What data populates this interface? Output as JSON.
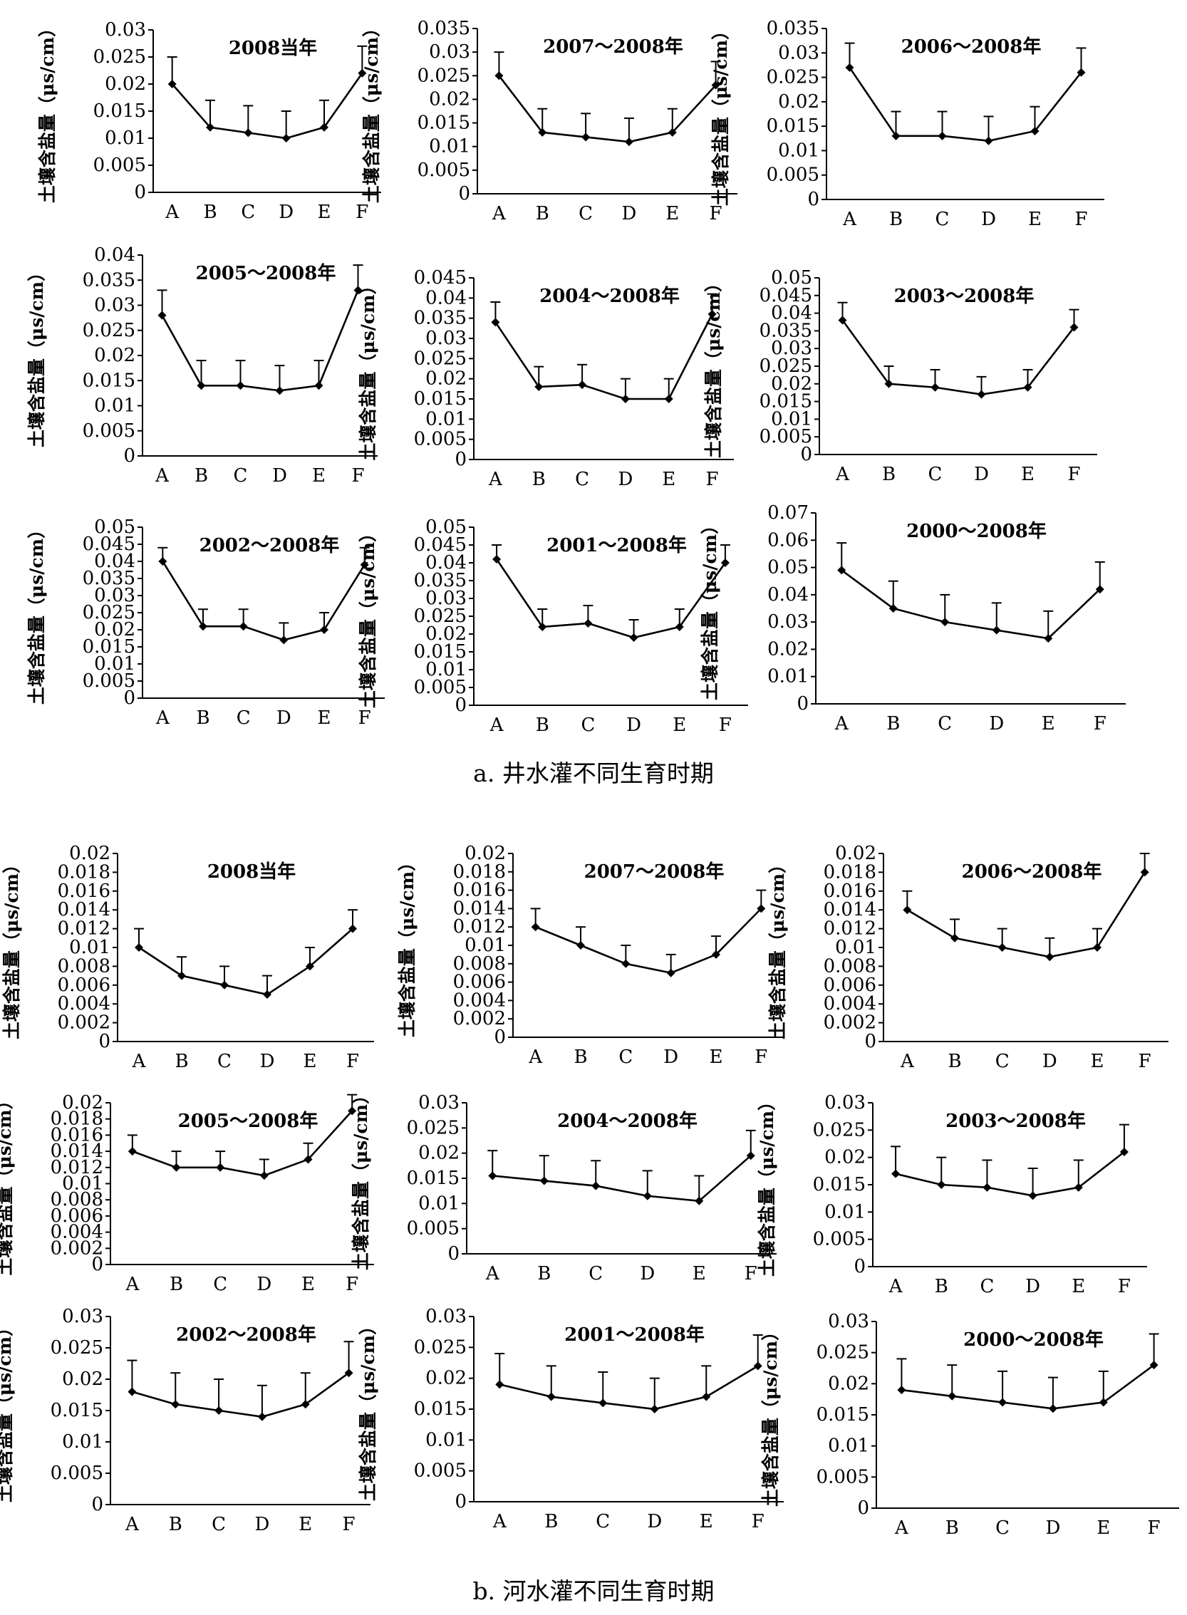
{
  "figure": {
    "caption_a": "a. 井水灌不同生育时期",
    "caption_b": "b. 河水灌不同生育时期"
  },
  "style": {
    "line_color": "#000000",
    "marker": "diamond",
    "background": "#ffffff"
  },
  "chart_data": [
    {
      "type": "line",
      "group": "a",
      "title": "2008当年",
      "ylabel": "土壤含盐量（μs/cm）",
      "categories": [
        "A",
        "B",
        "C",
        "D",
        "E",
        "F"
      ],
      "values": [
        0.02,
        0.012,
        0.011,
        0.01,
        0.012,
        0.022
      ],
      "error_upper": [
        0.025,
        0.017,
        0.016,
        0.015,
        0.017,
        0.027
      ],
      "ylim": [
        0,
        0.03
      ],
      "yticks": [
        0,
        0.005,
        0.01,
        0.015,
        0.02,
        0.025,
        0.03
      ],
      "ytick_labels": [
        "0",
        "0.005",
        "0.01",
        "0.015",
        "0.02",
        "0.025",
        "0.03"
      ]
    },
    {
      "type": "line",
      "group": "a",
      "title": "2007～2008年",
      "ylabel": "土壤含盐量（μs/cm）",
      "categories": [
        "A",
        "B",
        "C",
        "D",
        "E",
        "F"
      ],
      "values": [
        0.025,
        0.013,
        0.012,
        0.011,
        0.013,
        0.023
      ],
      "error_upper": [
        0.03,
        0.018,
        0.017,
        0.016,
        0.018,
        0.028
      ],
      "ylim": [
        0,
        0.035
      ],
      "yticks": [
        0,
        0.005,
        0.01,
        0.015,
        0.02,
        0.025,
        0.03,
        0.035
      ],
      "ytick_labels": [
        "0",
        "0.005",
        "0.01",
        "0.015",
        "0.02",
        "0.025",
        "0.03",
        "0.035"
      ]
    },
    {
      "type": "line",
      "group": "a",
      "title": "2006～2008年",
      "ylabel": "土壤含盐量（μs/cm）",
      "categories": [
        "A",
        "B",
        "C",
        "D",
        "E",
        "F"
      ],
      "values": [
        0.027,
        0.013,
        0.013,
        0.012,
        0.014,
        0.026
      ],
      "error_upper": [
        0.032,
        0.018,
        0.018,
        0.017,
        0.019,
        0.031
      ],
      "ylim": [
        0,
        0.035
      ],
      "yticks": [
        0,
        0.005,
        0.01,
        0.015,
        0.02,
        0.025,
        0.03,
        0.035
      ],
      "ytick_labels": [
        "0",
        "0.005",
        "0.01",
        "0.015",
        "0.02",
        "0.025",
        "0.03",
        "0.035"
      ]
    },
    {
      "type": "line",
      "group": "a",
      "title": "2005～2008年",
      "ylabel": "土壤含盐量（μs/cm）",
      "categories": [
        "A",
        "B",
        "C",
        "D",
        "E",
        "F"
      ],
      "values": [
        0.028,
        0.014,
        0.014,
        0.013,
        0.014,
        0.033
      ],
      "error_upper": [
        0.033,
        0.019,
        0.019,
        0.018,
        0.019,
        0.038
      ],
      "ylim": [
        0,
        0.04
      ],
      "yticks": [
        0,
        0.005,
        0.01,
        0.015,
        0.02,
        0.025,
        0.03,
        0.035,
        0.04
      ],
      "ytick_labels": [
        "0",
        "0.005",
        "0.01",
        "0.015",
        "0.02",
        "0.025",
        "0.03",
        "0.035",
        "0.04"
      ]
    },
    {
      "type": "line",
      "group": "a",
      "title": "2004～2008年",
      "ylabel": "土壤含盐量（μs/cm）",
      "categories": [
        "A",
        "B",
        "C",
        "D",
        "E",
        "F"
      ],
      "values": [
        0.034,
        0.018,
        0.0185,
        0.015,
        0.015,
        0.036
      ],
      "error_upper": [
        0.039,
        0.023,
        0.0235,
        0.02,
        0.02,
        0.041
      ],
      "ylim": [
        0,
        0.045
      ],
      "yticks": [
        0,
        0.005,
        0.01,
        0.015,
        0.02,
        0.025,
        0.03,
        0.035,
        0.04,
        0.045
      ],
      "ytick_labels": [
        "0",
        "0.005",
        "0.01",
        "0.015",
        "0.02",
        "0.025",
        "0.03",
        "0.035",
        "0.04",
        "0.045"
      ]
    },
    {
      "type": "line",
      "group": "a",
      "title": "2003～2008年",
      "ylabel": "土壤含盐量（μs/cm）",
      "categories": [
        "A",
        "B",
        "C",
        "D",
        "E",
        "F"
      ],
      "values": [
        0.038,
        0.02,
        0.019,
        0.017,
        0.019,
        0.036
      ],
      "error_upper": [
        0.043,
        0.025,
        0.024,
        0.022,
        0.024,
        0.041
      ],
      "ylim": [
        0,
        0.05
      ],
      "yticks": [
        0,
        0.005,
        0.01,
        0.015,
        0.02,
        0.025,
        0.03,
        0.035,
        0.04,
        0.045,
        0.05
      ],
      "ytick_labels": [
        "0",
        "0.005",
        "0.01",
        "0.015",
        "0.02",
        "0.025",
        "0.03",
        "0.035",
        "0.04",
        "0.045",
        "0.05"
      ]
    },
    {
      "type": "line",
      "group": "a",
      "title": "2002～2008年",
      "ylabel": "土壤含盐量（μs/cm）",
      "categories": [
        "A",
        "B",
        "C",
        "D",
        "E",
        "F"
      ],
      "values": [
        0.04,
        0.021,
        0.021,
        0.017,
        0.02,
        0.039
      ],
      "error_upper": [
        0.044,
        0.026,
        0.026,
        0.022,
        0.025,
        0.044
      ],
      "ylim": [
        0,
        0.05
      ],
      "yticks": [
        0,
        0.005,
        0.01,
        0.015,
        0.02,
        0.025,
        0.03,
        0.035,
        0.04,
        0.045,
        0.05
      ],
      "ytick_labels": [
        "0",
        "0.005",
        "0.01",
        "0.015",
        "0.02",
        "0.025",
        "0.03",
        "0.035",
        "0.04",
        "0.045",
        "0.05"
      ]
    },
    {
      "type": "line",
      "group": "a",
      "title": "2001～2008年",
      "ylabel": "土壤含盐量（μs/cm）",
      "categories": [
        "A",
        "B",
        "C",
        "D",
        "E",
        "F"
      ],
      "values": [
        0.041,
        0.022,
        0.023,
        0.019,
        0.022,
        0.04
      ],
      "error_upper": [
        0.045,
        0.027,
        0.028,
        0.024,
        0.027,
        0.045
      ],
      "ylim": [
        0,
        0.05
      ],
      "yticks": [
        0,
        0.005,
        0.01,
        0.015,
        0.02,
        0.025,
        0.03,
        0.035,
        0.04,
        0.045,
        0.05
      ],
      "ytick_labels": [
        "0",
        "0.005",
        "0.01",
        "0.015",
        "0.02",
        "0.025",
        "0.03",
        "0.035",
        "0.04",
        "0.045",
        "0.05"
      ]
    },
    {
      "type": "line",
      "group": "a",
      "title": "2000～2008年",
      "ylabel": "土壤含盐量（μs/cm）",
      "categories": [
        "A",
        "B",
        "C",
        "D",
        "E",
        "F"
      ],
      "values": [
        0.049,
        0.035,
        0.03,
        0.027,
        0.024,
        0.042
      ],
      "error_upper": [
        0.059,
        0.045,
        0.04,
        0.037,
        0.034,
        0.052
      ],
      "ylim": [
        0,
        0.07
      ],
      "yticks": [
        0,
        0.01,
        0.02,
        0.03,
        0.04,
        0.05,
        0.06,
        0.07
      ],
      "ytick_labels": [
        "0",
        "0.01",
        "0.02",
        "0.03",
        "0.04",
        "0.05",
        "0.06",
        "0.07"
      ]
    },
    {
      "type": "line",
      "group": "b",
      "title": "2008当年",
      "ylabel": "土壤含盐量（μs/cm）",
      "categories": [
        "A",
        "B",
        "C",
        "D",
        "E",
        "F"
      ],
      "values": [
        0.01,
        0.007,
        0.006,
        0.005,
        0.008,
        0.012
      ],
      "error_upper": [
        0.012,
        0.009,
        0.008,
        0.007,
        0.01,
        0.014
      ],
      "ylim": [
        0,
        0.02
      ],
      "yticks": [
        0,
        0.002,
        0.004,
        0.006,
        0.008,
        0.01,
        0.012,
        0.014,
        0.016,
        0.018,
        0.02
      ],
      "ytick_labels": [
        "0",
        "0.002",
        "0.004",
        "0.006",
        "0.008",
        "0.01",
        "0.012",
        "0.014",
        "0.016",
        "0.018",
        "0.02"
      ]
    },
    {
      "type": "line",
      "group": "b",
      "title": "2007～2008年",
      "ylabel": "土壤含盐量（μs/cm）",
      "categories": [
        "A",
        "B",
        "C",
        "D",
        "E",
        "F"
      ],
      "values": [
        0.012,
        0.01,
        0.008,
        0.007,
        0.009,
        0.014
      ],
      "error_upper": [
        0.014,
        0.012,
        0.01,
        0.009,
        0.011,
        0.016
      ],
      "ylim": [
        0,
        0.02
      ],
      "yticks": [
        0,
        0.002,
        0.004,
        0.006,
        0.008,
        0.01,
        0.012,
        0.014,
        0.016,
        0.018,
        0.02
      ],
      "ytick_labels": [
        "0",
        "0.002",
        "0.004",
        "0.006",
        "0.008",
        "0.01",
        "0.012",
        "0.014",
        "0.016",
        "0.018",
        "0.02"
      ]
    },
    {
      "type": "line",
      "group": "b",
      "title": "2006～2008年",
      "ylabel": "土壤含盐量（μs/cm）",
      "categories": [
        "A",
        "B",
        "C",
        "D",
        "E",
        "F"
      ],
      "values": [
        0.014,
        0.011,
        0.01,
        0.009,
        0.01,
        0.018
      ],
      "error_upper": [
        0.016,
        0.013,
        0.012,
        0.011,
        0.012,
        0.02
      ],
      "ylim": [
        0,
        0.02
      ],
      "yticks": [
        0,
        0.002,
        0.004,
        0.006,
        0.008,
        0.01,
        0.012,
        0.014,
        0.016,
        0.018,
        0.02
      ],
      "ytick_labels": [
        "0",
        "0.002",
        "0.004",
        "0.006",
        "0.008",
        "0.01",
        "0.012",
        "0.014",
        "0.016",
        "0.018",
        "0.02"
      ]
    },
    {
      "type": "line",
      "group": "b",
      "title": "2005～2008年",
      "ylabel": "土壤含盐量（μs/cm）",
      "categories": [
        "A",
        "B",
        "C",
        "D",
        "E",
        "F"
      ],
      "values": [
        0.014,
        0.012,
        0.012,
        0.011,
        0.013,
        0.019
      ],
      "error_upper": [
        0.016,
        0.014,
        0.014,
        0.013,
        0.015,
        0.021
      ],
      "ylim": [
        0,
        0.02
      ],
      "yticks": [
        0,
        0.002,
        0.004,
        0.006,
        0.008,
        0.01,
        0.012,
        0.014,
        0.016,
        0.018,
        0.02
      ],
      "ytick_labels": [
        "0",
        "0.002",
        "0.004",
        "0.006",
        "0.008",
        "0.01",
        "0.012",
        "0.014",
        "0.016",
        "0.018",
        "0.02"
      ]
    },
    {
      "type": "line",
      "group": "b",
      "title": "2004～2008年",
      "ylabel": "土壤含盐量（μs/cm）",
      "categories": [
        "A",
        "B",
        "C",
        "D",
        "E",
        "F"
      ],
      "values": [
        0.0155,
        0.0145,
        0.0135,
        0.0115,
        0.0105,
        0.0195
      ],
      "error_upper": [
        0.0205,
        0.0195,
        0.0185,
        0.0165,
        0.0155,
        0.0245
      ],
      "ylim": [
        0,
        0.03
      ],
      "yticks": [
        0,
        0.005,
        0.01,
        0.015,
        0.02,
        0.025,
        0.03
      ],
      "ytick_labels": [
        "0",
        "0.005",
        "0.01",
        "0.015",
        "0.02",
        "0.025",
        "0.03"
      ]
    },
    {
      "type": "line",
      "group": "b",
      "title": "2003～2008年",
      "ylabel": "土壤含盐量（μs/cm）",
      "categories": [
        "A",
        "B",
        "C",
        "D",
        "E",
        "F"
      ],
      "values": [
        0.017,
        0.015,
        0.0145,
        0.013,
        0.0145,
        0.021
      ],
      "error_upper": [
        0.022,
        0.02,
        0.0195,
        0.018,
        0.0195,
        0.026
      ],
      "ylim": [
        0,
        0.03
      ],
      "yticks": [
        0,
        0.005,
        0.01,
        0.015,
        0.02,
        0.025,
        0.03
      ],
      "ytick_labels": [
        "0",
        "0.005",
        "0.01",
        "0.015",
        "0.02",
        "0.025",
        "0.03"
      ]
    },
    {
      "type": "line",
      "group": "b",
      "title": "2002～2008年",
      "ylabel": "土壤含盐量（μs/cm）",
      "categories": [
        "A",
        "B",
        "C",
        "D",
        "E",
        "F"
      ],
      "values": [
        0.018,
        0.016,
        0.015,
        0.014,
        0.016,
        0.021
      ],
      "error_upper": [
        0.023,
        0.021,
        0.02,
        0.019,
        0.021,
        0.026
      ],
      "ylim": [
        0,
        0.03
      ],
      "yticks": [
        0,
        0.005,
        0.01,
        0.015,
        0.02,
        0.025,
        0.03
      ],
      "ytick_labels": [
        "0",
        "0.005",
        "0.01",
        "0.015",
        "0.02",
        "0.025",
        "0.03"
      ]
    },
    {
      "type": "line",
      "group": "b",
      "title": "2001～2008年",
      "ylabel": "土壤含盐量（μs/cm）",
      "categories": [
        "A",
        "B",
        "C",
        "D",
        "E",
        "F"
      ],
      "values": [
        0.019,
        0.017,
        0.016,
        0.015,
        0.017,
        0.022
      ],
      "error_upper": [
        0.024,
        0.022,
        0.021,
        0.02,
        0.022,
        0.027
      ],
      "ylim": [
        0,
        0.03
      ],
      "yticks": [
        0,
        0.005,
        0.01,
        0.015,
        0.02,
        0.025,
        0.03
      ],
      "ytick_labels": [
        "0",
        "0.005",
        "0.01",
        "0.015",
        "0.02",
        "0.025",
        "0.03"
      ]
    },
    {
      "type": "line",
      "group": "b",
      "title": "2000～2008年",
      "ylabel": "土壤含盐量（μs/cm）",
      "categories": [
        "A",
        "B",
        "C",
        "D",
        "E",
        "F"
      ],
      "values": [
        0.019,
        0.018,
        0.017,
        0.016,
        0.017,
        0.023
      ],
      "error_upper": [
        0.024,
        0.023,
        0.022,
        0.021,
        0.022,
        0.028
      ],
      "ylim": [
        0,
        0.03
      ],
      "yticks": [
        0,
        0.005,
        0.01,
        0.015,
        0.02,
        0.025,
        0.03
      ],
      "ytick_labels": [
        "0",
        "0.005",
        "0.01",
        "0.015",
        "0.02",
        "0.025",
        "0.03"
      ]
    }
  ]
}
